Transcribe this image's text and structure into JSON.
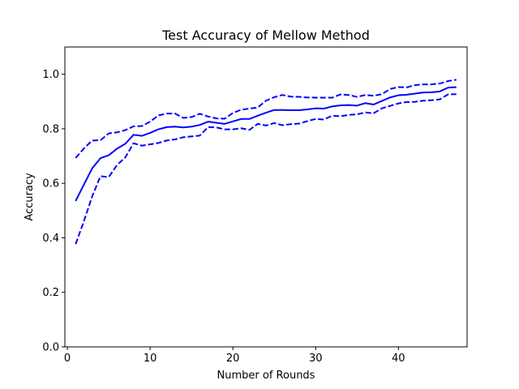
{
  "chart_data": {
    "type": "line",
    "title": "Test Accuracy of Mellow Method",
    "xlabel": "Number of Rounds",
    "ylabel": "Accuracy",
    "xlim": [
      -0.3,
      48.3
    ],
    "ylim": [
      0.0,
      1.1
    ],
    "xticks": [
      0,
      10,
      20,
      30,
      40
    ],
    "xtick_labels": [
      "0",
      "10",
      "20",
      "30",
      "40"
    ],
    "yticks": [
      0.0,
      0.2,
      0.4,
      0.6,
      0.8,
      1.0
    ],
    "ytick_labels": [
      "0.0",
      "0.2",
      "0.4",
      "0.6",
      "0.8",
      "1.0"
    ],
    "grid": false,
    "legend": "none",
    "color": "#0000ff",
    "x": [
      1,
      2,
      3,
      4,
      5,
      6,
      7,
      8,
      9,
      10,
      11,
      12,
      13,
      14,
      15,
      16,
      17,
      18,
      19,
      20,
      21,
      22,
      23,
      24,
      25,
      26,
      27,
      28,
      29,
      30,
      31,
      32,
      33,
      34,
      35,
      36,
      37,
      38,
      39,
      40,
      41,
      42,
      43,
      44,
      45,
      46,
      47
    ],
    "series": [
      {
        "style": "solid",
        "values": [
          0.535,
          0.595,
          0.655,
          0.692,
          0.703,
          0.727,
          0.745,
          0.778,
          0.774,
          0.785,
          0.798,
          0.806,
          0.808,
          0.805,
          0.808,
          0.814,
          0.826,
          0.822,
          0.818,
          0.827,
          0.836,
          0.836,
          0.848,
          0.859,
          0.869,
          0.869,
          0.868,
          0.868,
          0.871,
          0.875,
          0.874,
          0.882,
          0.886,
          0.887,
          0.885,
          0.894,
          0.889,
          0.902,
          0.915,
          0.923,
          0.925,
          0.929,
          0.933,
          0.934,
          0.937,
          0.951,
          0.953
        ]
      },
      {
        "style": "dashed",
        "values": [
          0.693,
          0.728,
          0.757,
          0.758,
          0.783,
          0.787,
          0.795,
          0.809,
          0.81,
          0.826,
          0.849,
          0.856,
          0.856,
          0.84,
          0.843,
          0.855,
          0.845,
          0.838,
          0.837,
          0.858,
          0.87,
          0.874,
          0.878,
          0.903,
          0.916,
          0.924,
          0.918,
          0.917,
          0.915,
          0.914,
          0.914,
          0.914,
          0.926,
          0.924,
          0.917,
          0.924,
          0.921,
          0.927,
          0.946,
          0.953,
          0.952,
          0.96,
          0.963,
          0.963,
          0.966,
          0.975,
          0.98
        ]
      },
      {
        "style": "dashed",
        "values": [
          0.377,
          0.461,
          0.552,
          0.626,
          0.623,
          0.667,
          0.695,
          0.747,
          0.738,
          0.743,
          0.748,
          0.757,
          0.761,
          0.769,
          0.772,
          0.775,
          0.806,
          0.805,
          0.798,
          0.798,
          0.802,
          0.796,
          0.818,
          0.812,
          0.821,
          0.813,
          0.817,
          0.819,
          0.828,
          0.836,
          0.834,
          0.848,
          0.846,
          0.851,
          0.853,
          0.86,
          0.857,
          0.875,
          0.884,
          0.893,
          0.898,
          0.899,
          0.903,
          0.905,
          0.908,
          0.926,
          0.927
        ]
      }
    ]
  }
}
